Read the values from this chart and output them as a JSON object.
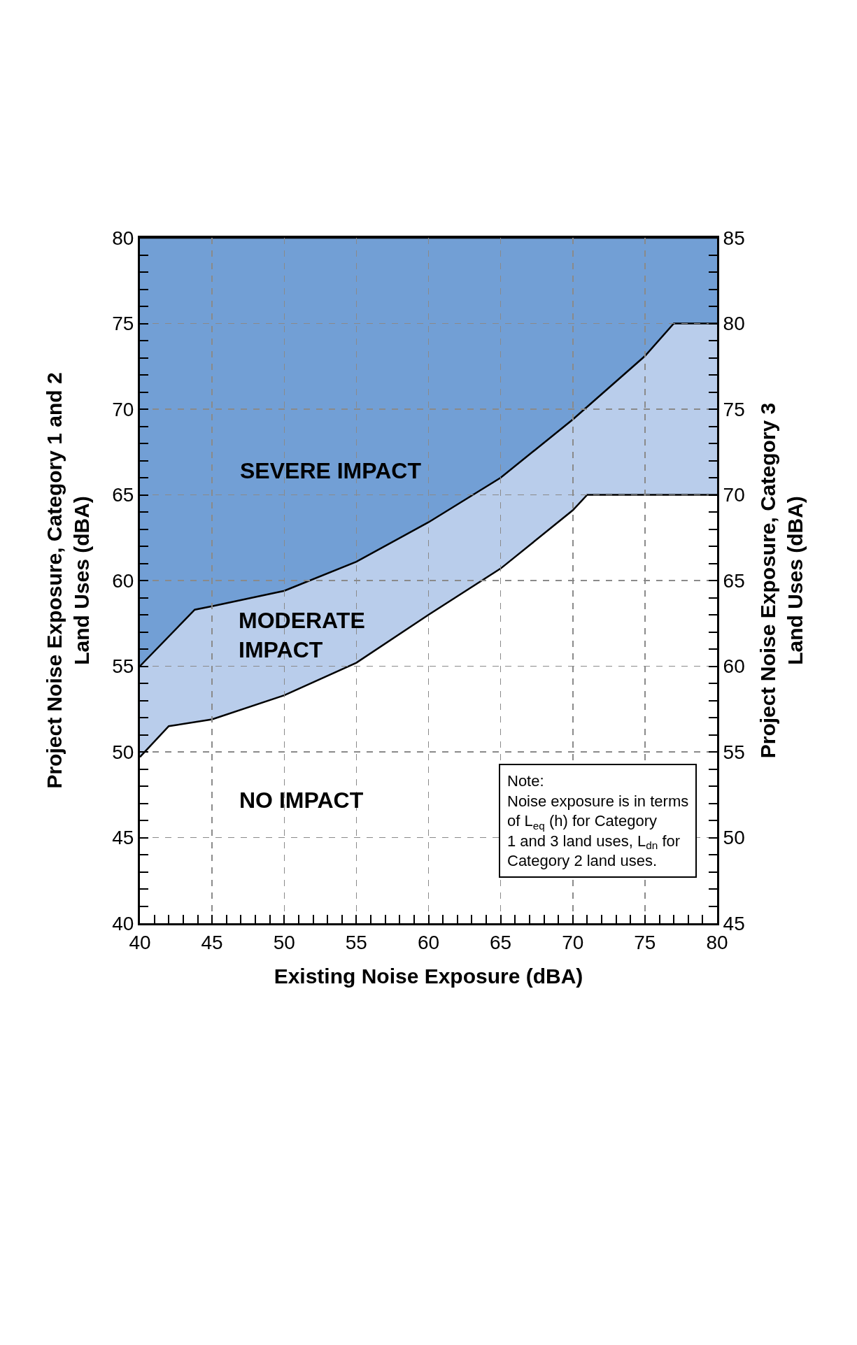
{
  "chart_data": {
    "type": "area",
    "xlabel": "Existing Noise Exposure (dBA)",
    "ylabel": "Project Noise Exposure, Category 1 and 2\nLand Uses (dBA)",
    "y2label": "Project Noise Exposure, Category 3\nLand Uses (dBA)",
    "xlim": [
      40,
      80
    ],
    "ylim": [
      40,
      80
    ],
    "y2lim": [
      45,
      85
    ],
    "xticks": [
      40,
      {
        "value": 41,
        "label": null
      },
      {
        "value": 42,
        "label": null
      },
      {
        "value": 43,
        "label": null
      },
      {
        "value": 44,
        "label": null
      },
      45,
      {
        "value": 46,
        "label": null
      },
      {
        "value": 47,
        "label": null
      },
      {
        "value": 48,
        "label": null
      },
      {
        "value": 49,
        "label": null
      },
      50,
      {
        "value": 51,
        "label": null
      },
      {
        "value": 52,
        "label": null
      },
      {
        "value": 53,
        "label": null
      },
      {
        "value": 54,
        "label": null
      },
      55,
      {
        "value": 56,
        "label": null
      },
      {
        "value": 57,
        "label": null
      },
      {
        "value": 58,
        "label": null
      },
      {
        "value": 59,
        "label": null
      },
      60,
      {
        "value": 61,
        "label": null
      },
      {
        "value": 62,
        "label": null
      },
      {
        "value": 63,
        "label": null
      },
      {
        "value": 64,
        "label": null
      },
      65,
      {
        "value": 66,
        "label": null
      },
      {
        "value": 67,
        "label": null
      },
      {
        "value": 68,
        "label": null
      },
      {
        "value": 69,
        "label": null
      },
      70,
      {
        "value": 71,
        "label": null
      },
      {
        "value": 72,
        "label": null
      },
      {
        "value": 73,
        "label": null
      },
      {
        "value": 74,
        "label": null
      },
      75,
      {
        "value": 76,
        "label": null
      },
      {
        "value": 77,
        "label": null
      },
      {
        "value": 78,
        "label": null
      },
      {
        "value": 79,
        "label": null
      },
      80
    ],
    "yticks": [
      40,
      {
        "value": 41,
        "label": null
      },
      {
        "value": 42,
        "label": null
      },
      {
        "value": 43,
        "label": null
      },
      {
        "value": 44,
        "label": null
      },
      45,
      {
        "value": 46,
        "label": null
      },
      {
        "value": 47,
        "label": null
      },
      {
        "value": 48,
        "label": null
      },
      {
        "value": 49,
        "label": null
      },
      50,
      {
        "value": 51,
        "label": null
      },
      {
        "value": 52,
        "label": null
      },
      {
        "value": 53,
        "label": null
      },
      {
        "value": 54,
        "label": null
      },
      55,
      {
        "value": 56,
        "label": null
      },
      {
        "value": 57,
        "label": null
      },
      {
        "value": 58,
        "label": null
      },
      {
        "value": 59,
        "label": null
      },
      60,
      {
        "value": 61,
        "label": null
      },
      {
        "value": 62,
        "label": null
      },
      {
        "value": 63,
        "label": null
      },
      {
        "value": 64,
        "label": null
      },
      65,
      {
        "value": 66,
        "label": null
      },
      {
        "value": 67,
        "label": null
      },
      {
        "value": 68,
        "label": null
      },
      {
        "value": 69,
        "label": null
      },
      70,
      {
        "value": 71,
        "label": null
      },
      {
        "value": 72,
        "label": null
      },
      {
        "value": 73,
        "label": null
      },
      {
        "value": 74,
        "label": null
      },
      75,
      {
        "value": 76,
        "label": null
      },
      {
        "value": 77,
        "label": null
      },
      {
        "value": 78,
        "label": null
      },
      {
        "value": 79,
        "label": null
      },
      80
    ],
    "y2ticks": [
      45,
      {
        "value": 46,
        "label": null
      },
      {
        "value": 47,
        "label": null
      },
      {
        "value": 48,
        "label": null
      },
      {
        "value": 49,
        "label": null
      },
      50,
      {
        "value": 51,
        "label": null
      },
      {
        "value": 52,
        "label": null
      },
      {
        "value": 53,
        "label": null
      },
      {
        "value": 54,
        "label": null
      },
      55,
      {
        "value": 56,
        "label": null
      },
      {
        "value": 57,
        "label": null
      },
      {
        "value": 58,
        "label": null
      },
      {
        "value": 59,
        "label": null
      },
      60,
      {
        "value": 61,
        "label": null
      },
      {
        "value": 62,
        "label": null
      },
      {
        "value": 63,
        "label": null
      },
      {
        "value": 64,
        "label": null
      },
      65,
      {
        "value": 66,
        "label": null
      },
      {
        "value": 67,
        "label": null
      },
      {
        "value": 68,
        "label": null
      },
      {
        "value": 69,
        "label": null
      },
      70,
      {
        "value": 71,
        "label": null
      },
      {
        "value": 72,
        "label": null
      },
      {
        "value": 73,
        "label": null
      },
      {
        "value": 74,
        "label": null
      },
      75,
      {
        "value": 76,
        "label": null
      },
      {
        "value": 77,
        "label": null
      },
      {
        "value": 78,
        "label": null
      },
      {
        "value": 79,
        "label": null
      },
      80,
      {
        "value": 81,
        "label": null
      },
      {
        "value": 82,
        "label": null
      },
      {
        "value": 83,
        "label": null
      },
      {
        "value": 84,
        "label": null
      },
      85
    ],
    "series": [
      {
        "color": "#729fd5",
        "x": [
          40,
          80
        ],
        "values": [
          80,
          80
        ]
      },
      {
        "color": "#b9cdeb",
        "x": [
          40,
          43.8,
          45,
          50,
          55,
          60,
          65,
          70,
          75,
          77,
          80
        ],
        "values": [
          55,
          58.3,
          58.5,
          59.4,
          61.1,
          63.4,
          66.0,
          69.4,
          73.1,
          75,
          75
        ]
      },
      {
        "color": "#ffffff",
        "x": [
          40,
          42,
          45,
          50,
          55,
          60,
          65,
          70,
          71,
          80
        ],
        "values": [
          49.7,
          51.5,
          51.9,
          53.3,
          55.2,
          58.0,
          60.7,
          64.1,
          65,
          65
        ]
      }
    ],
    "annotations": [
      "SEVERE IMPACT",
      "MODERATE\nIMPACT",
      "NO IMPACT",
      "Note:\nNoise exposure is in terms\nof L$_{eq}$ (h) for Category\n1 and 3 land uses, L$_{dn}$ for\nCategory 2 land uses."
    ],
    "grid": true
  }
}
